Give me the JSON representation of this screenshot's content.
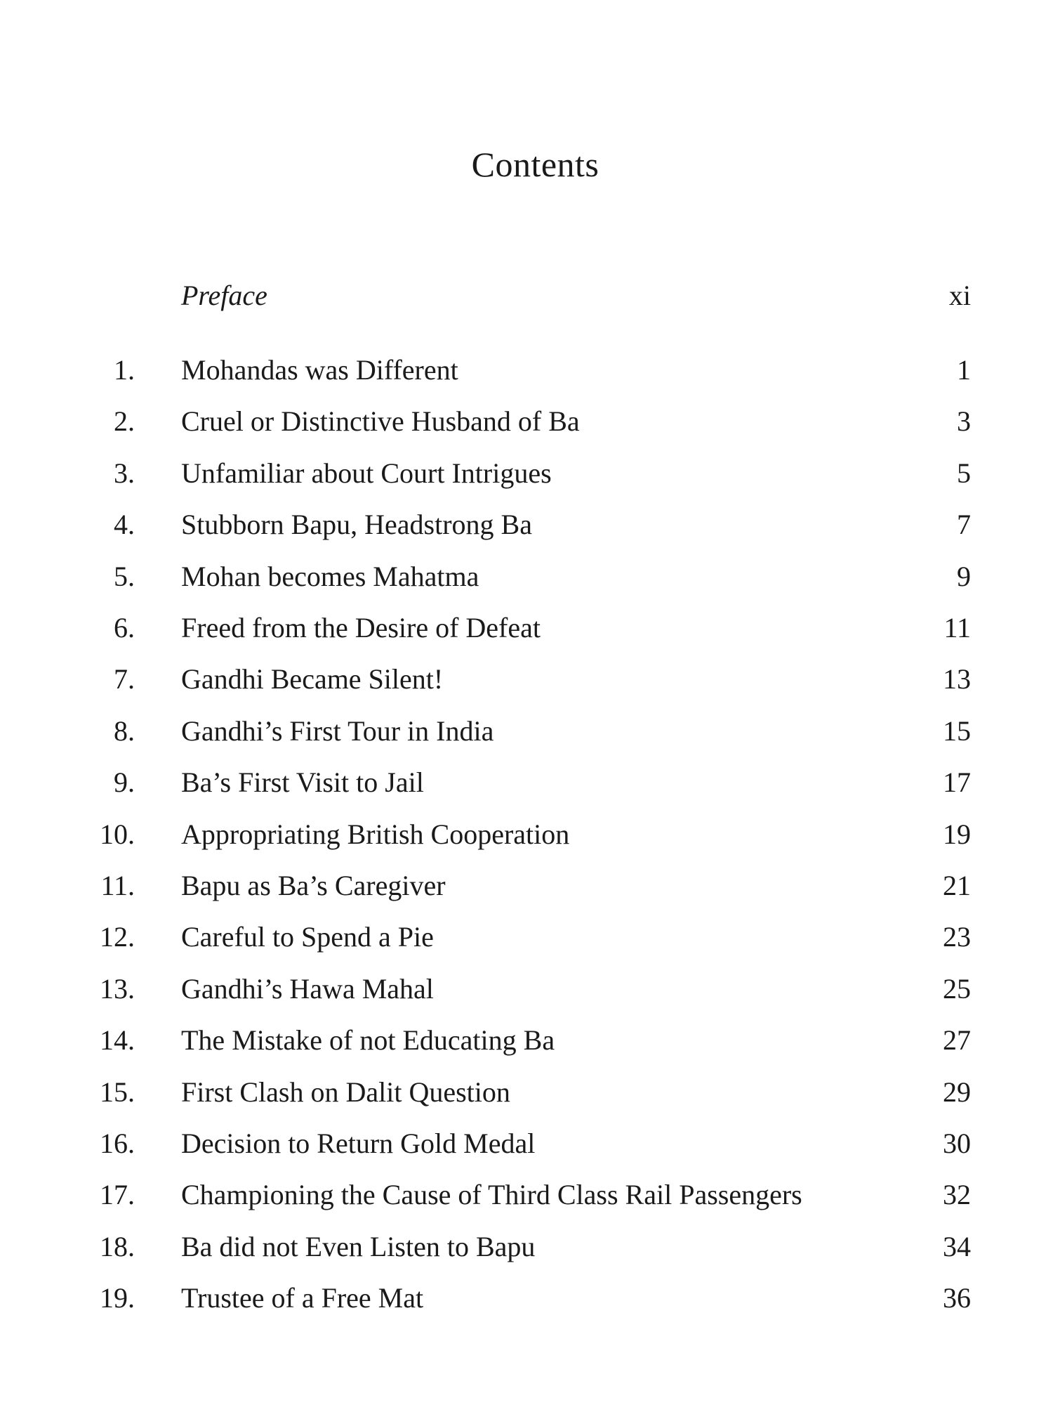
{
  "heading": "Contents",
  "preface": {
    "title": "Preface",
    "page": "xi"
  },
  "entries": [
    {
      "num": "1.",
      "title": "Mohandas was Different",
      "page": "1"
    },
    {
      "num": "2.",
      "title": "Cruel or Distinctive Husband of Ba",
      "page": "3"
    },
    {
      "num": "3.",
      "title": "Unfamiliar about Court Intrigues",
      "page": "5"
    },
    {
      "num": "4.",
      "title": "Stubborn Bapu, Headstrong Ba",
      "page": "7"
    },
    {
      "num": "5.",
      "title": "Mohan becomes Mahatma",
      "page": "9"
    },
    {
      "num": "6.",
      "title": "Freed from the Desire of Defeat",
      "page": "11"
    },
    {
      "num": "7.",
      "title": "Gandhi Became Silent!",
      "page": "13"
    },
    {
      "num": "8.",
      "title": "Gandhi’s First Tour in India",
      "page": "15"
    },
    {
      "num": "9.",
      "title": "Ba’s First Visit to Jail",
      "page": "17"
    },
    {
      "num": "10.",
      "title": "Appropriating British Cooperation",
      "page": "19"
    },
    {
      "num": "11.",
      "title": "Bapu as Ba’s Caregiver",
      "page": "21"
    },
    {
      "num": "12.",
      "title": "Careful to Spend a Pie",
      "page": "23"
    },
    {
      "num": "13.",
      "title": "Gandhi’s Hawa Mahal",
      "page": "25"
    },
    {
      "num": "14.",
      "title": "The Mistake of not Educating Ba",
      "page": "27"
    },
    {
      "num": "15.",
      "title": "First Clash on Dalit Question",
      "page": "29"
    },
    {
      "num": "16.",
      "title": "Decision to Return Gold Medal",
      "page": "30"
    },
    {
      "num": "17.",
      "title": "Championing the Cause of Third Class Rail Passengers",
      "page": "32"
    },
    {
      "num": "18.",
      "title": "Ba did not Even Listen to Bapu",
      "page": "34"
    },
    {
      "num": "19.",
      "title": "Trustee of a Free Mat",
      "page": "36"
    }
  ]
}
